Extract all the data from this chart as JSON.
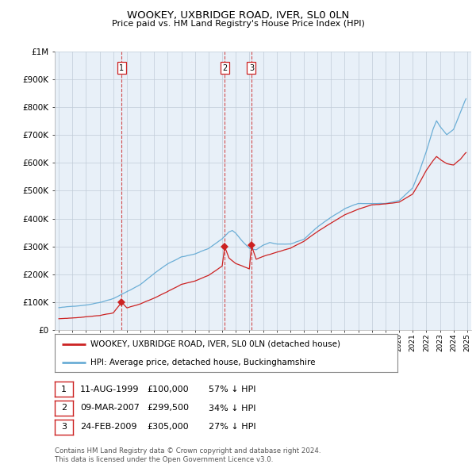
{
  "title": "WOOKEY, UXBRIDGE ROAD, IVER, SL0 0LN",
  "subtitle": "Price paid vs. HM Land Registry's House Price Index (HPI)",
  "legend_line1": "WOOKEY, UXBRIDGE ROAD, IVER, SL0 0LN (detached house)",
  "legend_line2": "HPI: Average price, detached house, Buckinghamshire",
  "transactions": [
    {
      "label": "1",
      "date": "11-AUG-1999",
      "price": 100000,
      "note": "57% ↓ HPI",
      "x_year": 1999.62
    },
    {
      "label": "2",
      "date": "09-MAR-2007",
      "price": 299500,
      "note": "34% ↓ HPI",
      "x_year": 2007.19
    },
    {
      "label": "3",
      "date": "24-FEB-2009",
      "price": 305000,
      "note": "27% ↓ HPI",
      "x_year": 2009.15
    }
  ],
  "footer_line1": "Contains HM Land Registry data © Crown copyright and database right 2024.",
  "footer_line2": "This data is licensed under the Open Government Licence v3.0.",
  "hpi_color": "#6baed6",
  "price_color": "#cc2222",
  "vline_color": "#cc2222",
  "chart_bg": "#e8f0f8",
  "background_color": "#ffffff",
  "grid_color": "#c0ccd8",
  "ylim": [
    0,
    1000000
  ],
  "xlim_start": 1994.7,
  "xlim_end": 2025.3,
  "yticks": [
    0,
    100000,
    200000,
    300000,
    400000,
    500000,
    600000,
    700000,
    800000,
    900000,
    1000000
  ],
  "ytick_labels": [
    "£0",
    "£100K",
    "£200K",
    "£300K",
    "£400K",
    "£500K",
    "£600K",
    "£700K",
    "£800K",
    "£900K",
    "£1M"
  ]
}
